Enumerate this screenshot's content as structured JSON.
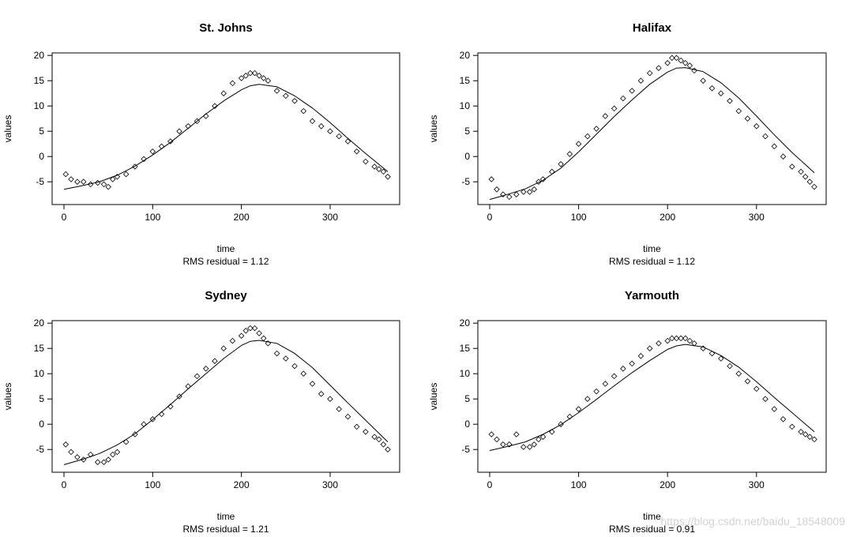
{
  "watermark": "https://blog.csdn.net/baidu_18548009",
  "chart_data": [
    {
      "type": "scatter",
      "title": "St. Johns",
      "xlabel": "time",
      "sublabel": "RMS residual = 1.12",
      "ylabel": "values",
      "xlim": [
        0,
        365
      ],
      "ylim": [
        -9.5,
        20.5
      ],
      "xticks": [
        0,
        100,
        200,
        300
      ],
      "yticks": [
        -5,
        0,
        5,
        10,
        15,
        20
      ],
      "yticklabels": [
        "-5",
        "0",
        "5",
        "10",
        "15",
        "20"
      ],
      "series": [
        {
          "style": "points",
          "x": [
            2,
            8,
            15,
            22,
            30,
            38,
            45,
            50,
            55,
            60,
            70,
            80,
            90,
            100,
            110,
            120,
            130,
            140,
            150,
            160,
            170,
            180,
            190,
            200,
            205,
            210,
            215,
            220,
            225,
            230,
            240,
            250,
            260,
            270,
            280,
            290,
            300,
            310,
            320,
            330,
            340,
            350,
            355,
            360,
            365
          ],
          "y": [
            -3.5,
            -4.5,
            -5,
            -5,
            -5.5,
            -5.2,
            -5.5,
            -6,
            -4.5,
            -4,
            -3.5,
            -2,
            -0.5,
            1,
            2,
            3,
            5,
            6,
            7,
            8,
            10,
            12.5,
            14.5,
            15.5,
            16,
            16.5,
            16.5,
            16,
            15.5,
            15,
            13,
            12,
            11,
            9,
            7,
            6,
            5,
            4,
            3,
            1,
            -1,
            -2,
            -2.5,
            -3,
            -4
          ]
        },
        {
          "style": "line",
          "x": [
            0,
            20,
            40,
            60,
            80,
            100,
            120,
            140,
            160,
            180,
            200,
            210,
            220,
            240,
            260,
            280,
            300,
            320,
            340,
            365
          ],
          "y": [
            -6.5,
            -5.8,
            -5,
            -3.7,
            -1.9,
            0.3,
            2.8,
            5.6,
            8.4,
            11,
            13.2,
            14,
            14.3,
            13.8,
            12,
            9.6,
            6.7,
            3.6,
            0.6,
            -3
          ]
        }
      ]
    },
    {
      "type": "scatter",
      "title": "Halifax",
      "xlabel": "time",
      "sublabel": "RMS residual = 1.12",
      "ylabel": "values",
      "xlim": [
        0,
        365
      ],
      "ylim": [
        -9.5,
        20.5
      ],
      "xticks": [
        0,
        100,
        200,
        300
      ],
      "yticks": [
        -5,
        0,
        5,
        10,
        15,
        20
      ],
      "yticklabels": [
        "-5",
        "0",
        "5",
        "10",
        "15",
        "20"
      ],
      "series": [
        {
          "style": "points",
          "x": [
            2,
            8,
            15,
            22,
            30,
            38,
            45,
            50,
            55,
            60,
            70,
            80,
            90,
            100,
            110,
            120,
            130,
            140,
            150,
            160,
            170,
            180,
            190,
            200,
            205,
            210,
            215,
            220,
            225,
            230,
            240,
            250,
            260,
            270,
            280,
            290,
            300,
            310,
            320,
            330,
            340,
            350,
            355,
            360,
            365
          ],
          "y": [
            -4.5,
            -6.5,
            -7.5,
            -8,
            -7.5,
            -7,
            -7,
            -6.5,
            -5,
            -4.5,
            -3,
            -1.5,
            0.5,
            2.5,
            4,
            5.5,
            8,
            9.5,
            11.5,
            13,
            15,
            16.5,
            17.5,
            18.5,
            19.5,
            19.5,
            19,
            18.5,
            18,
            17,
            15,
            13.5,
            12.5,
            11,
            9,
            7.5,
            6,
            4,
            2,
            0,
            -2,
            -3,
            -4,
            -5,
            -6
          ]
        },
        {
          "style": "line",
          "x": [
            0,
            20,
            40,
            60,
            80,
            100,
            120,
            140,
            160,
            180,
            200,
            210,
            220,
            240,
            260,
            280,
            300,
            320,
            340,
            365
          ],
          "y": [
            -8.5,
            -7.5,
            -6.4,
            -4.7,
            -2.3,
            0.9,
            4.4,
            7.9,
            11.2,
            14.3,
            16.7,
            17.5,
            17.6,
            16.8,
            14.6,
            11.6,
            8,
            4.3,
            0.8,
            -3.2
          ]
        }
      ]
    },
    {
      "type": "scatter",
      "title": "Sydney",
      "xlabel": "time",
      "sublabel": "RMS residual = 1.21",
      "ylabel": "values",
      "xlim": [
        0,
        365
      ],
      "ylim": [
        -9.5,
        20.5
      ],
      "xticks": [
        0,
        100,
        200,
        300
      ],
      "yticks": [
        -5,
        0,
        5,
        10,
        15,
        20
      ],
      "yticklabels": [
        "-5",
        "0",
        "5",
        "10",
        "15",
        "20"
      ],
      "series": [
        {
          "style": "points",
          "x": [
            2,
            8,
            15,
            22,
            30,
            38,
            45,
            50,
            55,
            60,
            70,
            80,
            90,
            100,
            110,
            120,
            130,
            140,
            150,
            160,
            170,
            180,
            190,
            200,
            205,
            210,
            215,
            220,
            225,
            230,
            240,
            250,
            260,
            270,
            280,
            290,
            300,
            310,
            320,
            330,
            340,
            350,
            355,
            360,
            365
          ],
          "y": [
            -4,
            -5.5,
            -6.5,
            -7,
            -6,
            -7.5,
            -7.5,
            -7,
            -6,
            -5.5,
            -3.5,
            -2,
            0,
            1,
            2,
            3.5,
            5.5,
            7.5,
            9.5,
            11,
            12.5,
            15,
            16.5,
            17.5,
            18.5,
            19,
            19,
            18,
            17,
            16,
            14,
            13,
            11.5,
            10,
            8,
            6,
            5,
            3,
            1.5,
            -0.5,
            -1.5,
            -2.5,
            -3,
            -4,
            -5
          ]
        },
        {
          "style": "line",
          "x": [
            0,
            20,
            40,
            60,
            80,
            100,
            120,
            140,
            160,
            180,
            200,
            210,
            220,
            240,
            260,
            280,
            300,
            320,
            340,
            365
          ],
          "y": [
            -8,
            -7,
            -5.8,
            -4.1,
            -1.9,
            0.9,
            3.9,
            7,
            10,
            13,
            15.6,
            16.4,
            16.6,
            16,
            14,
            11.2,
            7.7,
            4.2,
            0.8,
            -3.5
          ]
        }
      ]
    },
    {
      "type": "scatter",
      "title": "Yarmouth",
      "xlabel": "time",
      "sublabel": "RMS residual = 0.91",
      "ylabel": "values",
      "xlim": [
        0,
        365
      ],
      "ylim": [
        -9.5,
        20.5
      ],
      "xticks": [
        0,
        100,
        200,
        300
      ],
      "yticks": [
        -5,
        0,
        5,
        10,
        15,
        20
      ],
      "yticklabels": [
        "-5",
        "0",
        "5",
        "10",
        "15",
        "20"
      ],
      "series": [
        {
          "style": "points",
          "x": [
            2,
            8,
            15,
            22,
            30,
            38,
            45,
            50,
            55,
            60,
            70,
            80,
            90,
            100,
            110,
            120,
            130,
            140,
            150,
            160,
            170,
            180,
            190,
            200,
            205,
            210,
            215,
            220,
            225,
            230,
            240,
            250,
            260,
            270,
            280,
            290,
            300,
            310,
            320,
            330,
            340,
            350,
            355,
            360,
            365
          ],
          "y": [
            -2,
            -3,
            -4,
            -4,
            -2,
            -4.5,
            -4.5,
            -4,
            -3,
            -2.5,
            -1.5,
            0,
            1.5,
            3,
            5,
            6.5,
            8,
            9.5,
            11,
            12,
            13.5,
            15,
            16,
            16.5,
            17,
            17,
            17,
            17,
            16.5,
            16,
            15,
            14,
            13,
            11.5,
            10,
            8.5,
            7,
            5,
            3,
            1,
            -0.5,
            -1.5,
            -2,
            -2.5,
            -3
          ]
        },
        {
          "style": "line",
          "x": [
            0,
            20,
            40,
            60,
            80,
            100,
            120,
            140,
            160,
            180,
            200,
            210,
            220,
            240,
            260,
            280,
            300,
            320,
            340,
            365
          ],
          "y": [
            -5.2,
            -4.4,
            -3.5,
            -2,
            -0.1,
            2.3,
            4.9,
            7.6,
            10.2,
            12.6,
            14.8,
            15.5,
            15.8,
            15.3,
            13.6,
            11.3,
            8.4,
            5.3,
            2.3,
            -1.5
          ]
        }
      ]
    }
  ]
}
